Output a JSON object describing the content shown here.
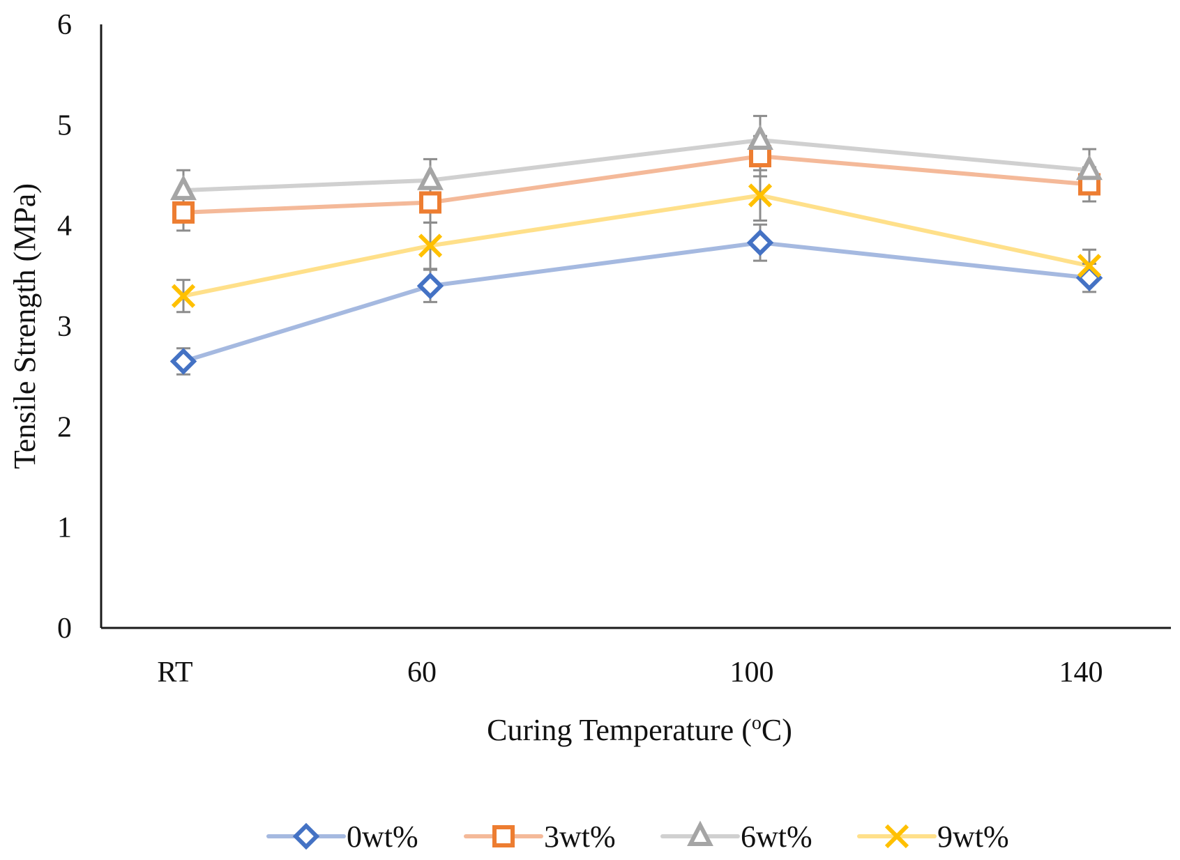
{
  "chart_data": {
    "type": "line",
    "title": "",
    "xlabel": "Curing Temperature (",
    "xlabel_sup": "o",
    "xlabel_suffix": "C)",
    "ylabel": "Tensile Strength (MPa)",
    "categories": [
      "RT",
      "60",
      "100",
      "140"
    ],
    "ylim": [
      0,
      6
    ],
    "yticks": [
      "0",
      "1",
      "2",
      "3",
      "4",
      "5",
      "6"
    ],
    "grid": false,
    "legend_position": "bottom",
    "series": [
      {
        "name": "0wt%",
        "marker": "diamond",
        "line_color": "#a5b9e0",
        "marker_color": "#4472c4",
        "values": [
          2.65,
          3.4,
          3.83,
          3.48
        ],
        "errors": [
          0.13,
          0.16,
          0.18,
          0.14
        ]
      },
      {
        "name": "3wt%",
        "marker": "square",
        "line_color": "#f4b999",
        "marker_color": "#ed7d31",
        "values": [
          4.13,
          4.23,
          4.69,
          4.41
        ],
        "errors": [
          0.18,
          0.2,
          0.2,
          0.17
        ]
      },
      {
        "name": "6wt%",
        "marker": "triangle",
        "line_color": "#d0d0d0",
        "marker_color": "#a5a5a5",
        "values": [
          4.35,
          4.45,
          4.85,
          4.55
        ],
        "errors": [
          0.2,
          0.21,
          0.24,
          0.21
        ]
      },
      {
        "name": "9wt%",
        "marker": "x",
        "line_color": "#ffe08a",
        "marker_color": "#ffc000",
        "values": [
          3.3,
          3.8,
          4.3,
          3.6
        ],
        "errors": [
          0.16,
          0.23,
          0.25,
          0.16
        ]
      }
    ]
  }
}
